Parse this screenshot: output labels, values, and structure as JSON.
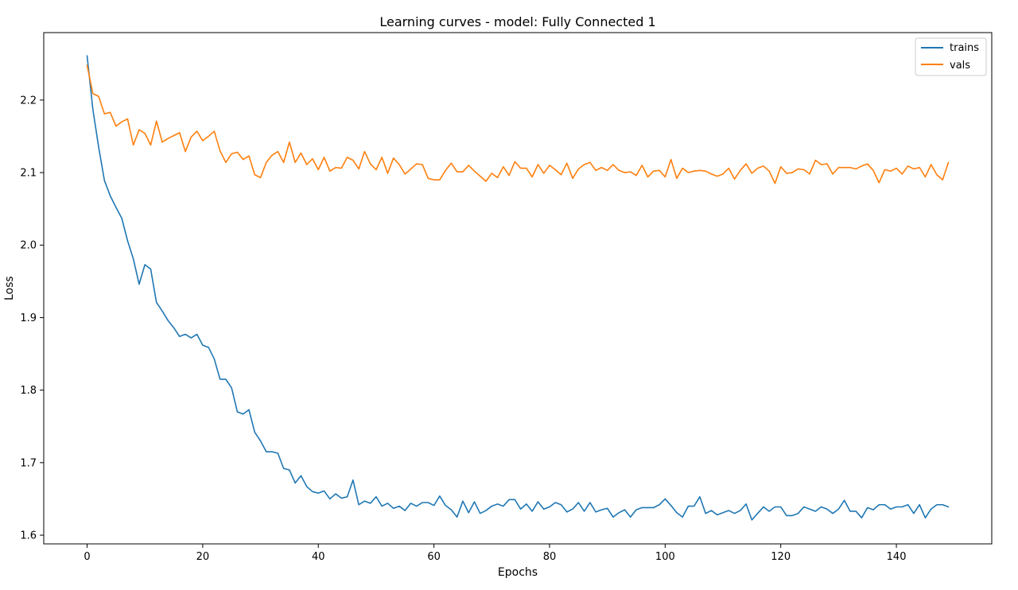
{
  "colors": {
    "trains": "#1f77b4",
    "vals": "#ff7f0e",
    "axis": "#000000",
    "legend_border": "#cccccc"
  },
  "chart_data": {
    "type": "line",
    "title": "Learning curves - model: Fully Connected 1",
    "xlabel": "Epochs",
    "ylabel": "Loss",
    "xlim": [
      -7.5,
      156.5
    ],
    "ylim": [
      1.588,
      2.293
    ],
    "xticks": [
      0,
      20,
      40,
      60,
      80,
      100,
      120,
      140
    ],
    "yticks": [
      1.6,
      1.7,
      1.8,
      1.9,
      2.0,
      2.1,
      2.2
    ],
    "ytick_labels": [
      "1.6",
      "1.7",
      "1.8",
      "1.9",
      "2.0",
      "2.1",
      "2.2"
    ],
    "grid": false,
    "legend_position": "top-right",
    "series": [
      {
        "name": "trains",
        "color": "#1f77b4",
        "values": [
          2.261,
          2.187,
          2.135,
          2.089,
          2.068,
          2.052,
          2.037,
          2.006,
          1.981,
          1.946,
          1.973,
          1.967,
          1.921,
          1.909,
          1.896,
          1.886,
          1.874,
          1.877,
          1.872,
          1.877,
          1.862,
          1.859,
          1.843,
          1.815,
          1.815,
          1.803,
          1.77,
          1.767,
          1.773,
          1.742,
          1.73,
          1.715,
          1.715,
          1.713,
          1.692,
          1.69,
          1.672,
          1.682,
          1.667,
          1.66,
          1.658,
          1.661,
          1.65,
          1.657,
          1.651,
          1.653,
          1.676,
          1.642,
          1.647,
          1.644,
          1.653,
          1.64,
          1.644,
          1.637,
          1.64,
          1.634,
          1.644,
          1.64,
          1.645,
          1.645,
          1.641,
          1.654,
          1.641,
          1.635,
          1.625,
          1.647,
          1.631,
          1.646,
          1.63,
          1.634,
          1.64,
          1.643,
          1.64,
          1.649,
          1.649,
          1.636,
          1.643,
          1.633,
          1.646,
          1.636,
          1.639,
          1.645,
          1.642,
          1.632,
          1.636,
          1.645,
          1.633,
          1.645,
          1.632,
          1.635,
          1.637,
          1.625,
          1.631,
          1.635,
          1.625,
          1.635,
          1.638,
          1.638,
          1.638,
          1.642,
          1.65,
          1.641,
          1.631,
          1.625,
          1.64,
          1.64,
          1.653,
          1.63,
          1.634,
          1.628,
          1.631,
          1.634,
          1.63,
          1.634,
          1.643,
          1.621,
          1.63,
          1.639,
          1.633,
          1.639,
          1.639,
          1.627,
          1.627,
          1.63,
          1.639,
          1.636,
          1.633,
          1.639,
          1.636,
          1.63,
          1.636,
          1.648,
          1.633,
          1.633,
          1.624,
          1.638,
          1.635,
          1.642,
          1.642,
          1.636,
          1.639,
          1.639,
          1.642,
          1.63,
          1.642,
          1.624,
          1.636,
          1.642,
          1.642,
          1.639
        ]
      },
      {
        "name": "vals",
        "color": "#ff7f0e",
        "values": [
          2.248,
          2.209,
          2.205,
          2.181,
          2.183,
          2.164,
          2.17,
          2.174,
          2.138,
          2.159,
          2.154,
          2.138,
          2.171,
          2.142,
          2.147,
          2.151,
          2.155,
          2.129,
          2.149,
          2.157,
          2.144,
          2.15,
          2.157,
          2.13,
          2.114,
          2.126,
          2.128,
          2.118,
          2.123,
          2.097,
          2.093,
          2.114,
          2.124,
          2.129,
          2.114,
          2.142,
          2.114,
          2.127,
          2.111,
          2.119,
          2.104,
          2.121,
          2.102,
          2.107,
          2.106,
          2.121,
          2.117,
          2.105,
          2.129,
          2.112,
          2.104,
          2.121,
          2.099,
          2.12,
          2.111,
          2.098,
          2.105,
          2.112,
          2.111,
          2.092,
          2.09,
          2.09,
          2.103,
          2.113,
          2.101,
          2.101,
          2.11,
          2.102,
          2.095,
          2.088,
          2.099,
          2.093,
          2.108,
          2.096,
          2.115,
          2.106,
          2.106,
          2.094,
          2.111,
          2.099,
          2.11,
          2.104,
          2.097,
          2.113,
          2.092,
          2.105,
          2.111,
          2.114,
          2.103,
          2.107,
          2.103,
          2.111,
          2.103,
          2.1,
          2.101,
          2.096,
          2.11,
          2.094,
          2.102,
          2.103,
          2.094,
          2.118,
          2.092,
          2.106,
          2.1,
          2.102,
          2.103,
          2.102,
          2.098,
          2.095,
          2.098,
          2.106,
          2.091,
          2.103,
          2.112,
          2.099,
          2.106,
          2.109,
          2.102,
          2.085,
          2.108,
          2.099,
          2.1,
          2.105,
          2.104,
          2.098,
          2.117,
          2.111,
          2.112,
          2.098,
          2.107,
          2.107,
          2.107,
          2.105,
          2.109,
          2.112,
          2.103,
          2.086,
          2.104,
          2.102,
          2.106,
          2.098,
          2.109,
          2.105,
          2.107,
          2.094,
          2.111,
          2.097,
          2.09,
          2.114
        ]
      }
    ]
  }
}
